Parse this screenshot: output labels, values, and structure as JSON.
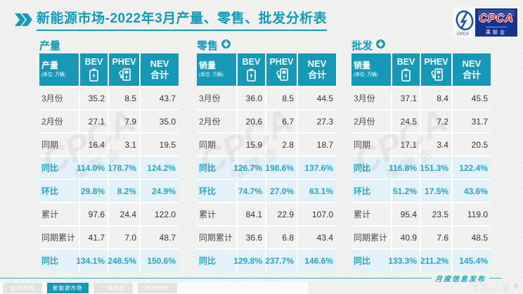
{
  "header": {
    "title": "新能源市场-2022年3月产量、零售、批发分析表",
    "logo": {
      "main": "CPCA",
      "sub": "乘联会",
      "side": "CPCA"
    }
  },
  "tables": [
    {
      "section_title": "产量",
      "arrow_icon": false,
      "corner_label": "产量",
      "corner_unit": "(单位: 万辆)",
      "col_bev": "BEV",
      "col_phev": "PHEV",
      "col_nev_line1": "NEV",
      "col_nev_line2": "合计",
      "rows": [
        {
          "label": "3月份",
          "values": [
            "35.2",
            "8.5",
            "43.7"
          ],
          "highlight": false
        },
        {
          "label": "2月份",
          "values": [
            "27.1",
            "7.9",
            "35.0"
          ],
          "highlight": false
        },
        {
          "label": "同期",
          "values": [
            "16.4",
            "3.1",
            "19.5"
          ],
          "highlight": false
        },
        {
          "label": "同比",
          "values": [
            "114.0%",
            "178.7%",
            "124.2%"
          ],
          "highlight": true
        },
        {
          "label": "环比",
          "values": [
            "29.8%",
            "8.2%",
            "24.9%"
          ],
          "highlight": true
        },
        {
          "label": "累计",
          "values": [
            "97.6",
            "24.4",
            "122.0"
          ],
          "highlight": false
        },
        {
          "label": "同期累计",
          "values": [
            "41.7",
            "7.0",
            "48.7"
          ],
          "highlight": false
        },
        {
          "label": "同比",
          "values": [
            "134.1%",
            "248.5%",
            "150.6%"
          ],
          "highlight": true
        }
      ]
    },
    {
      "section_title": "零售",
      "arrow_icon": true,
      "corner_label": "销量",
      "corner_unit": "(单位: 万辆)",
      "col_bev": "BEV",
      "col_phev": "PHEV",
      "col_nev_line1": "NEV",
      "col_nev_line2": "合计",
      "rows": [
        {
          "label": "3月份",
          "values": [
            "36.0",
            "8.5",
            "44.5"
          ],
          "highlight": false
        },
        {
          "label": "2月份",
          "values": [
            "20.6",
            "6.7",
            "27.3"
          ],
          "highlight": false
        },
        {
          "label": "同期",
          "values": [
            "15.9",
            "2.8",
            "18.7"
          ],
          "highlight": false
        },
        {
          "label": "同比",
          "values": [
            "126.7%",
            "198.6%",
            "137.6%"
          ],
          "highlight": true
        },
        {
          "label": "环比",
          "values": [
            "74.7%",
            "27.0%",
            "63.1%"
          ],
          "highlight": true
        },
        {
          "label": "累计",
          "values": [
            "84.1",
            "22.9",
            "107.0"
          ],
          "highlight": false
        },
        {
          "label": "同期累计",
          "values": [
            "36.6",
            "6.8",
            "43.4"
          ],
          "highlight": false
        },
        {
          "label": "同比",
          "values": [
            "129.8%",
            "237.7%",
            "146.6%"
          ],
          "highlight": true
        }
      ]
    },
    {
      "section_title": "批发",
      "arrow_icon": true,
      "corner_label": "销量",
      "corner_unit": "(单位: 万辆)",
      "col_bev": "BEV",
      "col_phev": "PHEV",
      "col_nev_line1": "NEV",
      "col_nev_line2": "合计",
      "rows": [
        {
          "label": "3月份",
          "values": [
            "37.1",
            "8.4",
            "45.5"
          ],
          "highlight": false
        },
        {
          "label": "2月份",
          "values": [
            "24.5",
            "7.2",
            "31.7"
          ],
          "highlight": false
        },
        {
          "label": "同期",
          "values": [
            "17.1",
            "3.4",
            "20.5"
          ],
          "highlight": false
        },
        {
          "label": "同比",
          "values": [
            "116.8%",
            "151.3%",
            "122.4%"
          ],
          "highlight": true
        },
        {
          "label": "环比",
          "values": [
            "51.2%",
            "17.5%",
            "43.6%"
          ],
          "highlight": true
        },
        {
          "label": "累计",
          "values": [
            "95.4",
            "23.5",
            "119.0"
          ],
          "highlight": false
        },
        {
          "label": "同期累计",
          "values": [
            "40.9",
            "7.6",
            "48.5"
          ],
          "highlight": false
        },
        {
          "label": "同比",
          "values": [
            "133.3%",
            "211.2%",
            "145.4%"
          ],
          "highlight": true
        }
      ]
    }
  ],
  "footer": {
    "note": "月度信息发布",
    "tabs": [
      {
        "label": "总体市场",
        "active": false
      },
      {
        "label": "新能源市场",
        "active": true
      },
      {
        "label": "厂商排名",
        "active": false
      },
      {
        "label": "市场分析",
        "active": false
      }
    ],
    "watermark": "汽车之家",
    "page_number": "8"
  },
  "colors": {
    "accent_teal": "#1699b7",
    "highlight_bg": "#e3f1f8",
    "highlight_text": "#27a5ca",
    "logo_navy": "#16338e",
    "logo_red": "#d6322b"
  }
}
